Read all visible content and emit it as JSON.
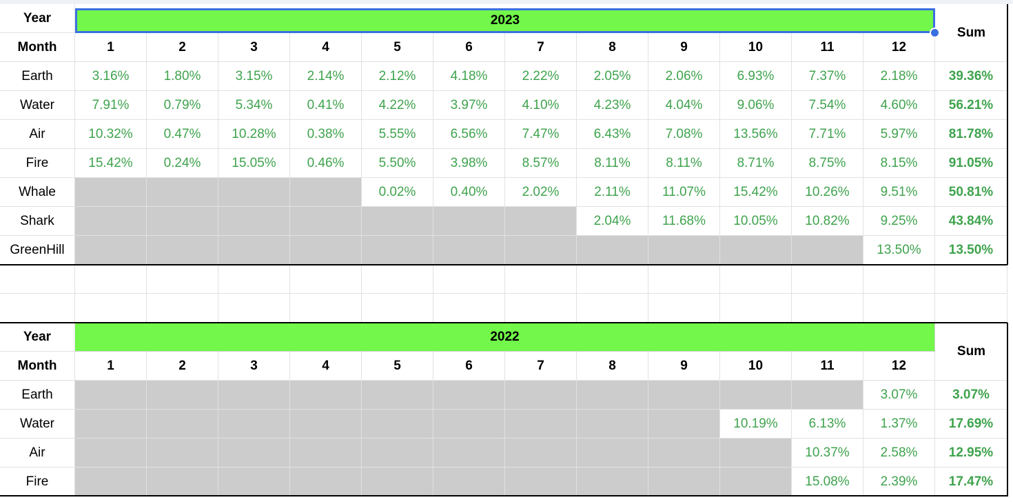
{
  "labels": {
    "year": "Year",
    "month": "Month",
    "sum": "Sum"
  },
  "months": [
    "1",
    "2",
    "3",
    "4",
    "5",
    "6",
    "7",
    "8",
    "9",
    "10",
    "11",
    "12"
  ],
  "table_2023": {
    "year": "2023",
    "rows": [
      {
        "name": "Earth",
        "values": [
          "3.16%",
          "1.80%",
          "3.15%",
          "2.14%",
          "2.12%",
          "4.18%",
          "2.22%",
          "2.05%",
          "2.06%",
          "6.93%",
          "7.37%",
          "2.18%"
        ],
        "sum": "39.36%"
      },
      {
        "name": "Water",
        "values": [
          "7.91%",
          "0.79%",
          "5.34%",
          "0.41%",
          "4.22%",
          "3.97%",
          "4.10%",
          "4.23%",
          "4.04%",
          "9.06%",
          "7.54%",
          "4.60%"
        ],
        "sum": "56.21%"
      },
      {
        "name": "Air",
        "values": [
          "10.32%",
          "0.47%",
          "10.28%",
          "0.38%",
          "5.55%",
          "6.56%",
          "7.47%",
          "6.43%",
          "7.08%",
          "13.56%",
          "7.71%",
          "5.97%"
        ],
        "sum": "81.78%"
      },
      {
        "name": "Fire",
        "values": [
          "15.42%",
          "0.24%",
          "15.05%",
          "0.46%",
          "5.50%",
          "3.98%",
          "8.57%",
          "8.11%",
          "8.11%",
          "8.71%",
          "8.75%",
          "8.15%"
        ],
        "sum": "91.05%"
      },
      {
        "name": "Whale",
        "values": [
          null,
          null,
          null,
          null,
          "0.02%",
          "0.40%",
          "2.02%",
          "2.11%",
          "11.07%",
          "15.42%",
          "10.26%",
          "9.51%"
        ],
        "sum": "50.81%"
      },
      {
        "name": "Shark",
        "values": [
          null,
          null,
          null,
          null,
          null,
          null,
          null,
          "2.04%",
          "11.68%",
          "10.05%",
          "10.82%",
          "9.25%"
        ],
        "sum": "43.84%"
      },
      {
        "name": "GreenHill",
        "values": [
          null,
          null,
          null,
          null,
          null,
          null,
          null,
          null,
          null,
          null,
          null,
          "13.50%"
        ],
        "sum": "13.50%"
      }
    ]
  },
  "table_2022": {
    "year": "2022",
    "rows": [
      {
        "name": "Earth",
        "values": [
          null,
          null,
          null,
          null,
          null,
          null,
          null,
          null,
          null,
          null,
          null,
          "3.07%"
        ],
        "sum": "3.07%"
      },
      {
        "name": "Water",
        "values": [
          null,
          null,
          null,
          null,
          null,
          null,
          null,
          null,
          null,
          "10.19%",
          "6.13%",
          "1.37%"
        ],
        "sum": "17.69%"
      },
      {
        "name": "Air",
        "values": [
          null,
          null,
          null,
          null,
          null,
          null,
          null,
          null,
          null,
          null,
          "10.37%",
          "2.58%"
        ],
        "sum": "12.95%"
      },
      {
        "name": "Fire",
        "values": [
          null,
          null,
          null,
          null,
          null,
          null,
          null,
          null,
          null,
          null,
          "15.08%",
          "2.39%"
        ],
        "sum": "17.47%"
      }
    ]
  },
  "colors": {
    "banner": "#72f74a",
    "value_text": "#3fa34d",
    "empty_cell": "#cccccc",
    "selection": "#3b6fe0"
  }
}
